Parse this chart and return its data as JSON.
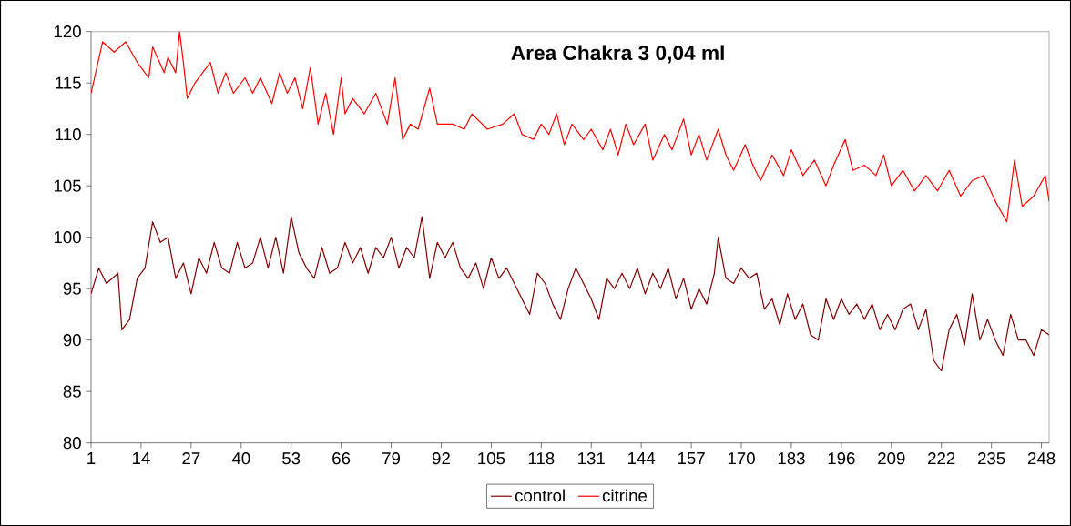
{
  "chart_data": {
    "type": "line",
    "title": "Area Chakra 3  0,04 ml",
    "xlim": [
      1,
      250
    ],
    "xticks": [
      1,
      14,
      27,
      40,
      53,
      66,
      79,
      92,
      105,
      118,
      131,
      144,
      157,
      170,
      183,
      196,
      209,
      222,
      235,
      248
    ],
    "ylim": [
      80,
      120
    ],
    "yticks": [
      80,
      85,
      90,
      95,
      100,
      105,
      110,
      115,
      120
    ],
    "legend": "bottom",
    "marker": "none",
    "line_style": "solid",
    "series": [
      {
        "name": "control",
        "color": "#800000",
        "x": [
          1,
          3,
          5,
          8,
          9,
          11,
          13,
          15,
          17,
          19,
          21,
          23,
          25,
          27,
          29,
          31,
          33,
          35,
          37,
          39,
          41,
          43,
          45,
          47,
          49,
          51,
          53,
          55,
          57,
          59,
          61,
          63,
          65,
          67,
          69,
          71,
          73,
          75,
          77,
          79,
          81,
          83,
          85,
          87,
          89,
          91,
          93,
          95,
          97,
          99,
          101,
          103,
          105,
          107,
          109,
          111,
          113,
          115,
          117,
          119,
          121,
          123,
          125,
          127,
          129,
          131,
          133,
          135,
          137,
          139,
          141,
          143,
          145,
          147,
          149,
          151,
          153,
          155,
          157,
          159,
          161,
          163,
          164,
          166,
          168,
          170,
          172,
          174,
          176,
          178,
          180,
          182,
          184,
          186,
          188,
          190,
          192,
          194,
          196,
          198,
          200,
          202,
          204,
          206,
          208,
          210,
          212,
          214,
          216,
          218,
          220,
          222,
          224,
          226,
          228,
          230,
          232,
          234,
          236,
          238,
          240,
          242,
          244,
          246,
          248,
          250
        ],
        "values": [
          94.5,
          97,
          95.5,
          96.5,
          91,
          92,
          96,
          97,
          101.5,
          99.5,
          100,
          96,
          97.5,
          94.5,
          98,
          96.5,
          99.5,
          97,
          96.5,
          99.5,
          97,
          97.5,
          100,
          97,
          100,
          96.5,
          102,
          98.5,
          97,
          96,
          99,
          96.5,
          97,
          99.5,
          97.5,
          99,
          96.5,
          99,
          98,
          100,
          97,
          99,
          98,
          102,
          96,
          99.5,
          98,
          99.5,
          97,
          96,
          97.5,
          95,
          98,
          96,
          97,
          95.5,
          94,
          92.5,
          96.5,
          95.5,
          93.5,
          92,
          95,
          97,
          95.5,
          94,
          92,
          96,
          95,
          96.5,
          95,
          97,
          94.5,
          96.5,
          95,
          97,
          94,
          96,
          93,
          95,
          93.5,
          96.5,
          100,
          96,
          95.5,
          97,
          96,
          96.5,
          93,
          94,
          91.5,
          94.5,
          92,
          93.5,
          90.5,
          90,
          94,
          92,
          94,
          92.5,
          93.5,
          92,
          93.5,
          91,
          92.5,
          91,
          93,
          93.5,
          91,
          93,
          88,
          87,
          91,
          92.5,
          89.5,
          94.5,
          90,
          92,
          90,
          88.5,
          92.5,
          90,
          90,
          88.5,
          91,
          90.5
        ]
      },
      {
        "name": "citrine",
        "color": "#ff0000",
        "x": [
          1,
          4,
          7,
          10,
          13,
          16,
          17,
          20,
          21,
          23,
          24,
          25,
          26,
          28,
          32,
          34,
          36,
          38,
          41,
          43,
          45,
          48,
          50,
          52,
          54,
          56,
          58,
          60,
          62,
          64,
          66,
          67,
          69,
          72,
          75,
          78,
          80,
          82,
          84,
          86,
          89,
          91,
          95,
          98,
          100,
          104,
          108,
          111,
          113,
          116,
          118,
          120,
          122,
          124,
          126,
          129,
          131,
          134,
          136,
          138,
          140,
          142,
          145,
          147,
          150,
          152,
          155,
          157,
          159,
          161,
          164,
          166,
          168,
          171,
          173,
          175,
          178,
          181,
          183,
          186,
          189,
          192,
          194,
          197,
          199,
          202,
          205,
          207,
          209,
          212,
          215,
          218,
          221,
          224,
          227,
          230,
          233,
          236,
          239,
          241,
          243,
          246,
          249,
          250
        ],
        "values": [
          114,
          119,
          118,
          119,
          117,
          115.5,
          118.5,
          116,
          117.5,
          116,
          120,
          117,
          113.5,
          115,
          117,
          114,
          116,
          114,
          115.5,
          114,
          115.5,
          113,
          116,
          114,
          115.5,
          112.5,
          116.5,
          111,
          114,
          110,
          115.5,
          112,
          113.5,
          112,
          114,
          111,
          115.5,
          109.5,
          111,
          110.5,
          114.5,
          111,
          111,
          110.5,
          112,
          110.5,
          111,
          112,
          110,
          109.5,
          111,
          110,
          112,
          109,
          111,
          109.5,
          110.5,
          108.5,
          110.5,
          108,
          111,
          109,
          111,
          107.5,
          110,
          108.5,
          111.5,
          108,
          110,
          107.5,
          110.5,
          108,
          106.5,
          109,
          107,
          105.5,
          108,
          106,
          108.5,
          106,
          107.5,
          105,
          107,
          109.5,
          106.5,
          107,
          106,
          108,
          105,
          106.5,
          104.5,
          106,
          104.5,
          106.5,
          104,
          105.5,
          106,
          103.5,
          101.5,
          107.5,
          103,
          104,
          106,
          103.5
        ]
      }
    ]
  }
}
